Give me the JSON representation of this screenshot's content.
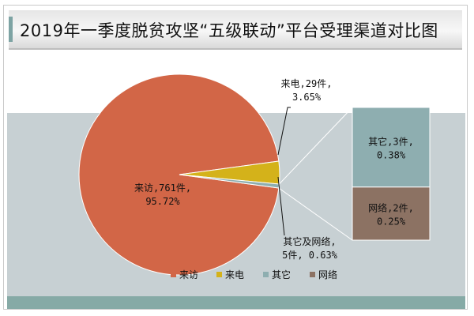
{
  "title": "2019年一季度脱贫攻坚“五级联动”平台受理渠道对比图",
  "chart_data": {
    "type": "pie",
    "title": "2019年一季度脱贫攻坚“五级联动”平台受理渠道对比图",
    "main_slices": [
      {
        "name": "来访",
        "value": 761,
        "percent": 95.72,
        "color": "#d26647",
        "label_lines": [
          "来访,761件,",
          "95.72%"
        ]
      },
      {
        "name": "来电",
        "value": 29,
        "percent": 3.65,
        "color": "#d4b21a",
        "label_lines": [
          "来电,29件,",
          "3.65%"
        ]
      },
      {
        "name": "其它及网络",
        "value": 5,
        "percent": 0.63,
        "color": "#8eaeb0",
        "label_lines": [
          "其它及网络,",
          "5件, 0.63%"
        ]
      }
    ],
    "breakout_bars": [
      {
        "name": "其它",
        "value": 3,
        "percent": 0.38,
        "color": "#8eaeb0",
        "label_lines": [
          "其它,3件,",
          "0.38%"
        ]
      },
      {
        "name": "网络",
        "value": 2,
        "percent": 0.25,
        "color": "#8c7263",
        "label_lines": [
          "网络,2件,",
          "0.25%"
        ]
      }
    ],
    "legend": [
      {
        "name": "来访",
        "color": "#d26647"
      },
      {
        "name": "来电",
        "color": "#d4b21a"
      },
      {
        "name": "其它",
        "color": "#8eaeb0"
      },
      {
        "name": "网络",
        "color": "#8c7263"
      }
    ],
    "legend_position": "bottom"
  }
}
